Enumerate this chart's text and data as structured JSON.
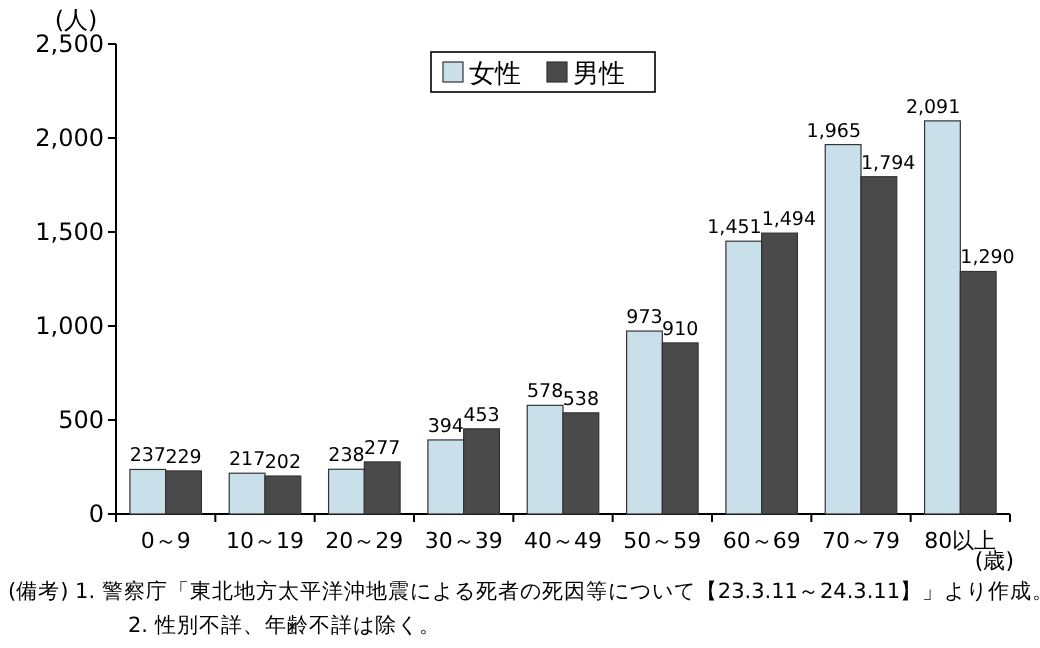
{
  "chart_data": {
    "type": "bar",
    "ylabel": "(人)",
    "xlabel": "(歳)",
    "categories": [
      "0～9",
      "10～19",
      "20～29",
      "30～39",
      "40～49",
      "50～59",
      "60～69",
      "70～79",
      "80以上"
    ],
    "series": [
      {
        "name": "女性",
        "color": "#c9e0ea",
        "values": [
          237,
          217,
          238,
          394,
          578,
          973,
          1451,
          1965,
          2091
        ],
        "value_labels": [
          "237",
          "217",
          "238",
          "394",
          "578",
          "973",
          "1,451",
          "1,965",
          "2,091"
        ]
      },
      {
        "name": "男性",
        "color": "#4a4a4a",
        "values": [
          229,
          202,
          277,
          453,
          538,
          910,
          1494,
          1794,
          1290
        ],
        "value_labels": [
          "229",
          "202",
          "277",
          "453",
          "538",
          "910",
          "1,494",
          "1,794",
          "1,290"
        ]
      }
    ],
    "ylim": [
      0,
      2500
    ],
    "yticks": [
      {
        "value": 0,
        "label": "0"
      },
      {
        "value": 500,
        "label": "500"
      },
      {
        "value": 1000,
        "label": "1,000"
      },
      {
        "value": 1500,
        "label": "1,500"
      },
      {
        "value": 2000,
        "label": "2,000"
      },
      {
        "value": 2500,
        "label": "2,500"
      }
    ],
    "legend": "top",
    "annotations": [
      "(備考) 1. 警察庁「東北地方太平洋沖地震による死者の死因等について【23.3.11～24.3.11】」より作成。",
      "2. 性別不詳、年齢不詳は除く。"
    ]
  }
}
